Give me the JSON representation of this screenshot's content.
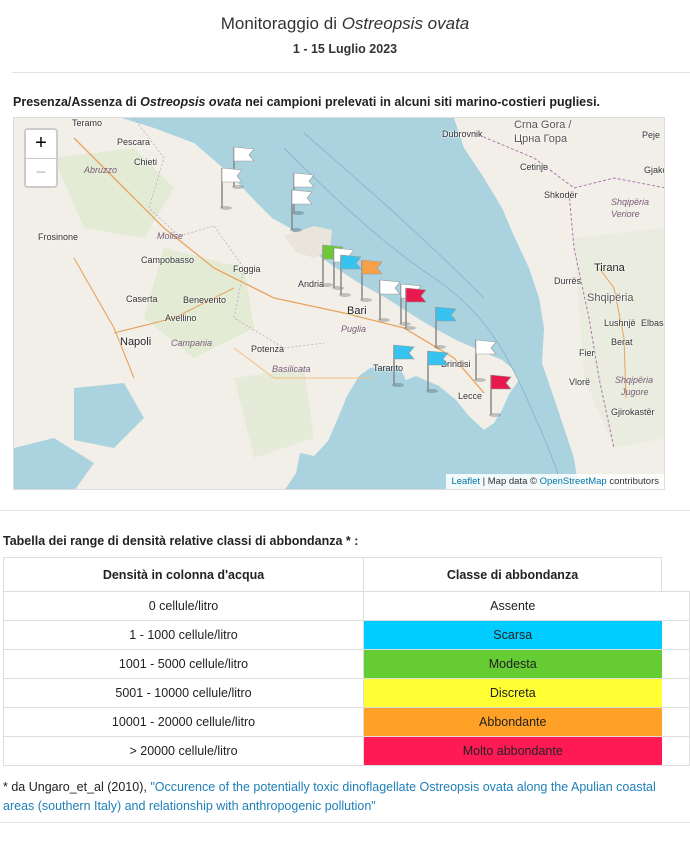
{
  "header": {
    "title_prefix": "Monitoraggio di ",
    "title_species": "Ostreopsis ovata",
    "date_range": "1 - 15 Luglio 2023"
  },
  "map_section": {
    "caption_prefix": "Presenza/Assenza di ",
    "caption_species": "Ostreopsis ovata",
    "caption_suffix": " nei campioni prelevati in alcuni siti marino-costieri pugliesi.",
    "zoom_in_label": "+",
    "zoom_out_label": "−",
    "attribution": {
      "leaflet": "Leaflet",
      "sep": " | Map data © ",
      "osm": "OpenStreetMap",
      "suffix": " contributors"
    },
    "place_labels": [
      "Teramo",
      "Pescara",
      "Chieti",
      "Abruzzo",
      "Frosinone",
      "Molise",
      "Campobasso",
      "Foggia",
      "Caserta",
      "Benevento",
      "Avellino",
      "Napoli",
      "Campania",
      "Potenza",
      "Basilicata",
      "Andria",
      "Bari",
      "Puglia",
      "Taranto",
      "Brindisi",
      "Lecce",
      "Dubrovnik",
      "Crna Gora /",
      "Црна Гора",
      "Cetinje",
      "Shkodër",
      "Shqipëria",
      "Veriore",
      "Tirana",
      "Durrës",
      "Shqipëria",
      "Lushnjë",
      "Elbasan",
      "Berat",
      "Fier",
      "Vlorë",
      "Shqipëria",
      "Jugore",
      "Gjirokastër",
      "Peje",
      "Gjako"
    ],
    "flags": [
      {
        "status": "Assente",
        "color": "#ffffff"
      },
      {
        "status": "Assente",
        "color": "#ffffff"
      },
      {
        "status": "Assente",
        "color": "#ffffff"
      },
      {
        "status": "Assente",
        "color": "#ffffff"
      },
      {
        "status": "Modesta",
        "color": "#6dc935"
      },
      {
        "status": "Assente",
        "color": "#ffffff"
      },
      {
        "status": "Scarsa",
        "color": "#36c3f0"
      },
      {
        "status": "Abbondante",
        "color": "#f7a149"
      },
      {
        "status": "Assente",
        "color": "#ffffff"
      },
      {
        "status": "Assente",
        "color": "#ffffff"
      },
      {
        "status": "Molto abbondante",
        "color": "#e8194f"
      },
      {
        "status": "Scarsa",
        "color": "#36c3f0"
      },
      {
        "status": "Scarsa",
        "color": "#36c3f0"
      },
      {
        "status": "Scarsa",
        "color": "#36c3f0"
      },
      {
        "status": "Assente",
        "color": "#ffffff"
      },
      {
        "status": "Molto abbondante",
        "color": "#e8194f"
      }
    ]
  },
  "density_table": {
    "caption": "Tabella dei range di densità relative classi di abbondanza * :",
    "headers": [
      "Densità in colonna d'acqua",
      "Classe di abbondanza"
    ],
    "rows": [
      {
        "density": "0 cellule/litro",
        "class": "Assente",
        "color": "#ffffff"
      },
      {
        "density": "1 - 1000 cellule/litro",
        "class": "Scarsa",
        "color": "#00ccff"
      },
      {
        "density": "1001 - 5000 cellule/litro",
        "class": "Modesta",
        "color": "#66cc33"
      },
      {
        "density": "5001 - 10000 cellule/litro",
        "class": "Discreta",
        "color": "#ffff33"
      },
      {
        "density": "10001 - 20000 cellule/litro",
        "class": "Abbondante",
        "color": "#ffa126"
      },
      {
        "density": "> 20000 cellule/litro",
        "class": "Molto abbondante",
        "color": "#ff1a55"
      }
    ]
  },
  "footnote": {
    "prefix": "* da Ungaro_et_al (2010), ",
    "link": "\"Occurence of the potentially toxic dinoflagellate Ostreopsis ovata along the Apulian coastal areas (southern Italy) and relationship with anthropogenic pollution\""
  }
}
